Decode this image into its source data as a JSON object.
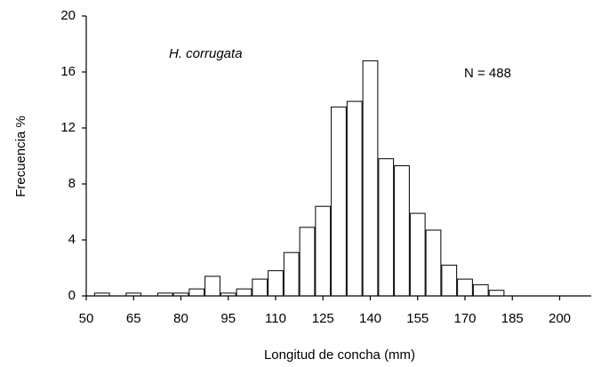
{
  "chart_data": {
    "type": "histogram",
    "xlabel": "Longitud de concha  (mm)",
    "ylabel": "Frecuencia  %",
    "annotations": [
      "H. corrugata",
      "N = 488"
    ],
    "bins": [
      52.5,
      57.5,
      62.5,
      67.5,
      72.5,
      77.5,
      82.5,
      87.5,
      92.5,
      97.5,
      102.5,
      107.5,
      112.5,
      117.5,
      122.5,
      127.5,
      132.5,
      137.5,
      142.5,
      147.5,
      152.5,
      157.5,
      162.5,
      167.5,
      172.5,
      177.5,
      182.5
    ],
    "values": [
      0.2,
      0,
      0.2,
      0,
      0.2,
      0.2,
      0.5,
      1.4,
      0.2,
      0.5,
      1.2,
      1.8,
      3.1,
      4.9,
      6.4,
      13.5,
      13.9,
      16.8,
      9.8,
      9.3,
      5.9,
      4.7,
      2.2,
      1.2,
      0.8,
      0.4
    ],
    "color": "#ffffff",
    "edgecolor": "#000000",
    "xlim": [
      50,
      210
    ],
    "xticks": [
      50,
      65,
      80,
      95,
      110,
      125,
      140,
      155,
      170,
      185,
      200
    ],
    "ylim": [
      0,
      20
    ],
    "yticks": [
      0,
      4,
      8,
      12,
      16,
      20
    ],
    "grid": false
  }
}
